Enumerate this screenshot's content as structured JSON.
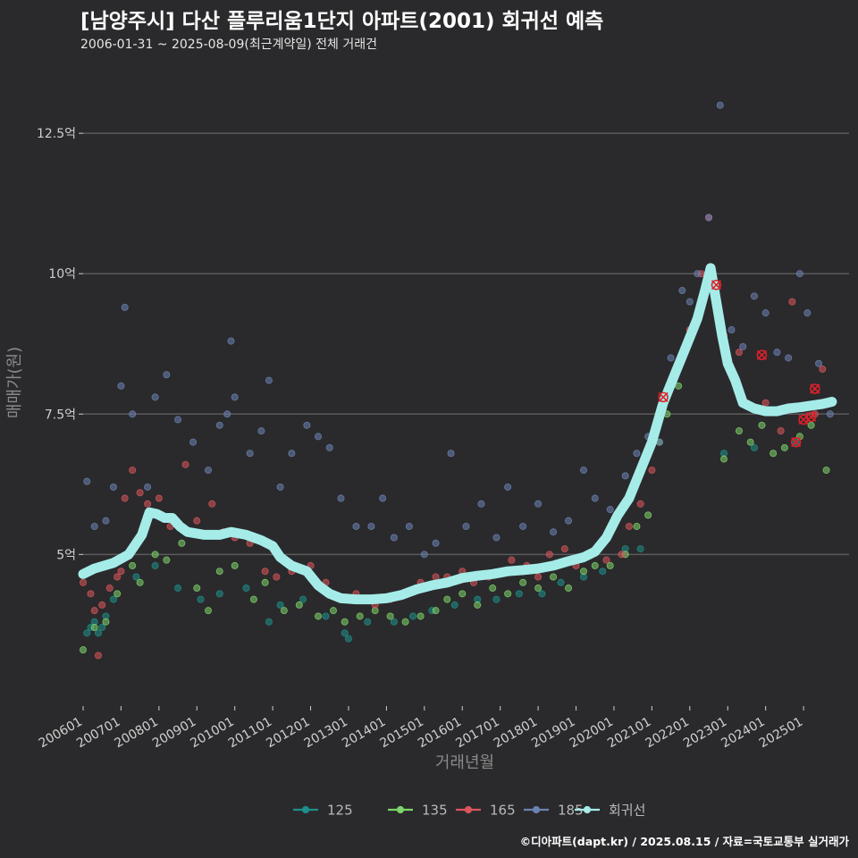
{
  "header": {
    "title": "[남양주시] 다산 플루리움1단지 아파트(2001) 회귀선 예측",
    "subtitle": "2006-01-31 ~ 2025-08-09(최근계약일) 전체 거래건"
  },
  "footer": {
    "credit": "©디아파트(dapt.kr) / 2025.08.15 / 자료=국토교통부 실거래가"
  },
  "colors": {
    "background": "#2a2a2c",
    "grid": "#5a5a5c",
    "s125": "#1e8f8a",
    "s135": "#7ed36a",
    "s165": "#d9555b",
    "s185": "#6b82b3",
    "regression": "#a5ece9",
    "marker": "#e0202a"
  },
  "chart_data": {
    "type": "scatter",
    "title": "[남양주시] 다산 플루리움1단지 아파트(2001) 회귀선 예측",
    "xlabel": "거래년월",
    "ylabel": "매매가(원)",
    "xlim": [
      2006.0,
      2026.2
    ],
    "ylim": [
      2.3,
      13.6
    ],
    "ytick_values": [
      5,
      7.5,
      10,
      12.5
    ],
    "ytick_labels": [
      "5억",
      "7.5억",
      "10억",
      "12.5억"
    ],
    "xtick_values": [
      2006,
      2007,
      2008,
      2009,
      2010,
      2011,
      2012,
      2013,
      2014,
      2015,
      2016,
      2017,
      2018,
      2019,
      2020,
      2021,
      2022,
      2023,
      2024,
      2025
    ],
    "xtick_labels": [
      "200601",
      "200701",
      "200801",
      "200901",
      "201001",
      "201101",
      "201201",
      "201301",
      "201401",
      "201501",
      "201601",
      "201701",
      "201801",
      "201901",
      "202001",
      "202101",
      "202201",
      "202301",
      "202401",
      "202501"
    ],
    "legend": [
      "125",
      "135",
      "165",
      "185",
      "회귀선"
    ],
    "legend_position": "bottom",
    "series": [
      {
        "name": "125",
        "color_key": "s125",
        "points": [
          [
            2006.1,
            3.6
          ],
          [
            2006.2,
            3.7
          ],
          [
            2006.3,
            3.8
          ],
          [
            2006.4,
            3.6
          ],
          [
            2006.5,
            3.7
          ],
          [
            2006.6,
            3.9
          ],
          [
            2006.8,
            4.2
          ],
          [
            2007.4,
            4.6
          ],
          [
            2007.9,
            4.8
          ],
          [
            2008.5,
            4.4
          ],
          [
            2009.1,
            4.2
          ],
          [
            2009.6,
            4.3
          ],
          [
            2010.3,
            4.4
          ],
          [
            2010.9,
            3.8
          ],
          [
            2011.2,
            4.1
          ],
          [
            2011.8,
            4.2
          ],
          [
            2012.4,
            3.9
          ],
          [
            2012.9,
            3.6
          ],
          [
            2013.0,
            3.5
          ],
          [
            2013.5,
            3.8
          ],
          [
            2014.2,
            3.8
          ],
          [
            2014.7,
            3.9
          ],
          [
            2015.2,
            4.0
          ],
          [
            2015.8,
            4.1
          ],
          [
            2016.4,
            4.2
          ],
          [
            2016.9,
            4.2
          ],
          [
            2017.5,
            4.3
          ],
          [
            2018.1,
            4.3
          ],
          [
            2018.6,
            4.5
          ],
          [
            2019.2,
            4.6
          ],
          [
            2019.7,
            4.7
          ],
          [
            2020.3,
            5.1
          ],
          [
            2020.7,
            5.1
          ],
          [
            2022.9,
            6.8
          ],
          [
            2023.7,
            6.9
          ],
          [
            2024.8,
            7.0
          ]
        ]
      },
      {
        "name": "135",
        "color_key": "s135",
        "points": [
          [
            2006.0,
            3.3
          ],
          [
            2006.3,
            3.7
          ],
          [
            2006.6,
            3.8
          ],
          [
            2006.9,
            4.3
          ],
          [
            2007.3,
            4.8
          ],
          [
            2007.5,
            4.5
          ],
          [
            2007.9,
            5.0
          ],
          [
            2008.2,
            4.9
          ],
          [
            2008.6,
            5.2
          ],
          [
            2009.0,
            4.4
          ],
          [
            2009.3,
            4.0
          ],
          [
            2009.6,
            4.7
          ],
          [
            2010.0,
            4.8
          ],
          [
            2010.5,
            4.2
          ],
          [
            2010.8,
            4.5
          ],
          [
            2011.3,
            4.0
          ],
          [
            2011.7,
            4.1
          ],
          [
            2012.2,
            3.9
          ],
          [
            2012.6,
            4.0
          ],
          [
            2012.9,
            3.8
          ],
          [
            2013.3,
            3.9
          ],
          [
            2013.7,
            4.0
          ],
          [
            2014.1,
            3.9
          ],
          [
            2014.5,
            3.8
          ],
          [
            2014.9,
            3.9
          ],
          [
            2015.3,
            4.0
          ],
          [
            2015.6,
            4.2
          ],
          [
            2016.0,
            4.3
          ],
          [
            2016.4,
            4.1
          ],
          [
            2016.8,
            4.4
          ],
          [
            2017.2,
            4.3
          ],
          [
            2017.6,
            4.5
          ],
          [
            2018.0,
            4.4
          ],
          [
            2018.4,
            4.6
          ],
          [
            2018.8,
            4.4
          ],
          [
            2019.2,
            4.7
          ],
          [
            2019.5,
            4.8
          ],
          [
            2019.9,
            4.8
          ],
          [
            2020.3,
            5.0
          ],
          [
            2020.6,
            5.5
          ],
          [
            2020.9,
            5.7
          ],
          [
            2021.2,
            7.0
          ],
          [
            2021.4,
            7.5
          ],
          [
            2021.7,
            8.0
          ],
          [
            2022.9,
            6.7
          ],
          [
            2023.3,
            7.2
          ],
          [
            2023.6,
            7.0
          ],
          [
            2023.9,
            7.3
          ],
          [
            2024.2,
            6.8
          ],
          [
            2024.5,
            6.9
          ],
          [
            2024.9,
            7.1
          ],
          [
            2025.2,
            7.3
          ],
          [
            2025.6,
            6.5
          ]
        ]
      },
      {
        "name": "165",
        "color_key": "s165",
        "points": [
          [
            2006.0,
            4.5
          ],
          [
            2006.2,
            4.3
          ],
          [
            2006.3,
            4.0
          ],
          [
            2006.4,
            3.2
          ],
          [
            2006.5,
            4.1
          ],
          [
            2006.7,
            4.4
          ],
          [
            2006.9,
            4.6
          ],
          [
            2007.0,
            4.7
          ],
          [
            2007.1,
            6.0
          ],
          [
            2007.3,
            6.5
          ],
          [
            2007.5,
            6.1
          ],
          [
            2007.7,
            5.9
          ],
          [
            2008.0,
            6.0
          ],
          [
            2008.3,
            5.5
          ],
          [
            2008.7,
            6.6
          ],
          [
            2009.0,
            5.6
          ],
          [
            2009.4,
            5.9
          ],
          [
            2009.7,
            5.4
          ],
          [
            2010.0,
            5.3
          ],
          [
            2010.4,
            5.2
          ],
          [
            2010.8,
            4.7
          ],
          [
            2011.1,
            4.6
          ],
          [
            2011.5,
            4.7
          ],
          [
            2012.0,
            4.8
          ],
          [
            2012.4,
            4.5
          ],
          [
            2012.8,
            4.2
          ],
          [
            2013.2,
            4.3
          ],
          [
            2013.7,
            4.1
          ],
          [
            2014.1,
            4.2
          ],
          [
            2014.5,
            4.3
          ],
          [
            2014.9,
            4.5
          ],
          [
            2015.3,
            4.6
          ],
          [
            2015.6,
            4.6
          ],
          [
            2016.0,
            4.7
          ],
          [
            2016.3,
            4.5
          ],
          [
            2016.7,
            4.6
          ],
          [
            2017.0,
            4.7
          ],
          [
            2017.3,
            4.9
          ],
          [
            2017.7,
            4.8
          ],
          [
            2018.0,
            4.6
          ],
          [
            2018.3,
            5.0
          ],
          [
            2018.7,
            5.1
          ],
          [
            2019.0,
            4.8
          ],
          [
            2019.4,
            5.0
          ],
          [
            2019.8,
            4.9
          ],
          [
            2020.2,
            5.0
          ],
          [
            2020.4,
            5.5
          ],
          [
            2020.7,
            5.9
          ],
          [
            2021.0,
            6.5
          ],
          [
            2021.2,
            7.5
          ],
          [
            2021.5,
            8.0
          ],
          [
            2021.8,
            8.5
          ],
          [
            2022.0,
            9.0
          ],
          [
            2022.3,
            10.0
          ],
          [
            2022.5,
            11.0
          ],
          [
            2022.7,
            9.8
          ],
          [
            2022.9,
            8.9
          ],
          [
            2023.3,
            8.6
          ],
          [
            2023.8,
            7.6
          ],
          [
            2024.0,
            7.7
          ],
          [
            2024.4,
            7.2
          ],
          [
            2024.7,
            9.5
          ],
          [
            2025.0,
            7.6
          ],
          [
            2025.3,
            7.5
          ],
          [
            2025.5,
            8.3
          ]
        ]
      },
      {
        "name": "185",
        "color_key": "s185",
        "points": [
          [
            2006.1,
            6.3
          ],
          [
            2006.3,
            5.5
          ],
          [
            2006.6,
            5.6
          ],
          [
            2006.8,
            6.2
          ],
          [
            2007.0,
            8.0
          ],
          [
            2007.1,
            9.4
          ],
          [
            2007.3,
            7.5
          ],
          [
            2007.7,
            6.2
          ],
          [
            2007.9,
            7.8
          ],
          [
            2008.2,
            8.2
          ],
          [
            2008.5,
            7.4
          ],
          [
            2008.9,
            7.0
          ],
          [
            2009.3,
            6.5
          ],
          [
            2009.6,
            7.3
          ],
          [
            2009.8,
            7.5
          ],
          [
            2009.9,
            8.8
          ],
          [
            2010.0,
            7.8
          ],
          [
            2010.4,
            6.8
          ],
          [
            2010.7,
            7.2
          ],
          [
            2010.9,
            8.1
          ],
          [
            2011.2,
            6.2
          ],
          [
            2011.5,
            6.8
          ],
          [
            2011.9,
            7.3
          ],
          [
            2012.2,
            7.1
          ],
          [
            2012.5,
            6.9
          ],
          [
            2012.8,
            6.0
          ],
          [
            2013.2,
            5.5
          ],
          [
            2013.6,
            5.5
          ],
          [
            2013.9,
            6.0
          ],
          [
            2014.2,
            5.3
          ],
          [
            2014.6,
            5.5
          ],
          [
            2015.0,
            5.0
          ],
          [
            2015.3,
            5.2
          ],
          [
            2015.7,
            6.8
          ],
          [
            2016.1,
            5.5
          ],
          [
            2016.5,
            5.9
          ],
          [
            2016.9,
            5.3
          ],
          [
            2017.2,
            6.2
          ],
          [
            2017.6,
            5.5
          ],
          [
            2018.0,
            5.9
          ],
          [
            2018.4,
            5.4
          ],
          [
            2018.8,
            5.6
          ],
          [
            2019.2,
            6.5
          ],
          [
            2019.5,
            6.0
          ],
          [
            2019.9,
            5.8
          ],
          [
            2020.3,
            6.4
          ],
          [
            2020.6,
            6.8
          ],
          [
            2020.9,
            7.1
          ],
          [
            2021.2,
            7.0
          ],
          [
            2021.5,
            8.5
          ],
          [
            2021.8,
            9.7
          ],
          [
            2022.0,
            9.5
          ],
          [
            2022.2,
            10.0
          ],
          [
            2022.5,
            11.0
          ],
          [
            2022.8,
            13.0
          ],
          [
            2023.1,
            9.0
          ],
          [
            2023.4,
            8.7
          ],
          [
            2023.7,
            9.6
          ],
          [
            2024.0,
            9.3
          ],
          [
            2024.3,
            8.6
          ],
          [
            2024.6,
            8.5
          ],
          [
            2024.9,
            10.0
          ],
          [
            2025.1,
            9.3
          ],
          [
            2025.4,
            8.4
          ],
          [
            2025.7,
            7.5
          ]
        ]
      }
    ],
    "regression": {
      "name": "회귀선",
      "color_key": "regression",
      "points": [
        [
          2006.0,
          4.65
        ],
        [
          2006.3,
          4.75
        ],
        [
          2006.8,
          4.85
        ],
        [
          2007.2,
          5.0
        ],
        [
          2007.55,
          5.35
        ],
        [
          2007.75,
          5.75
        ],
        [
          2007.95,
          5.72
        ],
        [
          2008.15,
          5.65
        ],
        [
          2008.35,
          5.65
        ],
        [
          2008.55,
          5.5
        ],
        [
          2008.75,
          5.4
        ],
        [
          2009.2,
          5.35
        ],
        [
          2009.6,
          5.35
        ],
        [
          2009.9,
          5.4
        ],
        [
          2010.3,
          5.35
        ],
        [
          2010.7,
          5.25
        ],
        [
          2011.0,
          5.15
        ],
        [
          2011.2,
          4.95
        ],
        [
          2011.5,
          4.8
        ],
        [
          2011.9,
          4.7
        ],
        [
          2012.2,
          4.45
        ],
        [
          2012.5,
          4.3
        ],
        [
          2012.8,
          4.22
        ],
        [
          2013.2,
          4.2
        ],
        [
          2013.6,
          4.2
        ],
        [
          2014.0,
          4.22
        ],
        [
          2014.4,
          4.28
        ],
        [
          2014.8,
          4.38
        ],
        [
          2015.2,
          4.45
        ],
        [
          2015.6,
          4.5
        ],
        [
          2016.0,
          4.58
        ],
        [
          2016.4,
          4.62
        ],
        [
          2016.8,
          4.65
        ],
        [
          2017.2,
          4.7
        ],
        [
          2017.6,
          4.72
        ],
        [
          2018.0,
          4.75
        ],
        [
          2018.4,
          4.8
        ],
        [
          2018.8,
          4.88
        ],
        [
          2019.2,
          4.95
        ],
        [
          2019.5,
          5.05
        ],
        [
          2019.8,
          5.3
        ],
        [
          2020.1,
          5.7
        ],
        [
          2020.4,
          6.0
        ],
        [
          2020.7,
          6.5
        ],
        [
          2021.0,
          7.0
        ],
        [
          2021.3,
          7.7
        ],
        [
          2021.6,
          8.2
        ],
        [
          2021.9,
          8.7
        ],
        [
          2022.2,
          9.2
        ],
        [
          2022.4,
          9.7
        ],
        [
          2022.55,
          10.1
        ],
        [
          2022.7,
          9.5
        ],
        [
          2022.85,
          8.9
        ],
        [
          2023.0,
          8.4
        ],
        [
          2023.2,
          8.1
        ],
        [
          2023.4,
          7.7
        ],
        [
          2023.7,
          7.6
        ],
        [
          2024.0,
          7.55
        ],
        [
          2024.3,
          7.55
        ],
        [
          2024.6,
          7.6
        ],
        [
          2024.9,
          7.62
        ],
        [
          2025.2,
          7.65
        ],
        [
          2025.5,
          7.68
        ],
        [
          2025.75,
          7.72
        ]
      ]
    },
    "highlights": [
      [
        2022.7,
        9.8
      ],
      [
        2023.9,
        8.55
      ],
      [
        2025.0,
        7.4
      ],
      [
        2025.3,
        7.95
      ],
      [
        2025.2,
        7.45
      ],
      [
        2024.8,
        7.0
      ],
      [
        2021.3,
        7.8
      ]
    ]
  }
}
